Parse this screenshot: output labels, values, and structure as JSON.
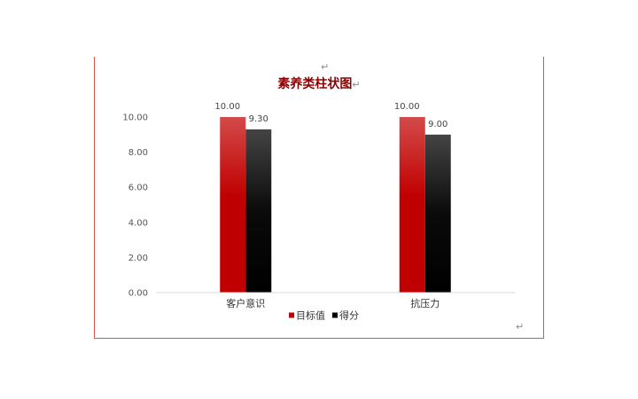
{
  "doc": {
    "para_mark": "↵"
  },
  "chart_data": {
    "type": "bar",
    "title": "素养类柱状图",
    "categories": [
      "客户意识",
      "抗压力"
    ],
    "series": [
      {
        "name": "目标值",
        "values": [
          10.0,
          10.0
        ],
        "color": "#c00000"
      },
      {
        "name": "得分",
        "values": [
          9.3,
          9.0
        ],
        "color": "#000000"
      }
    ],
    "data_labels": [
      [
        "10.00",
        "10.00"
      ],
      [
        "9.30",
        "9.00"
      ]
    ],
    "ylim": [
      0,
      10
    ],
    "yticks": [
      0,
      2,
      4,
      6,
      8,
      10
    ],
    "ytick_labels": [
      "0.00",
      "2.00",
      "4.00",
      "6.00",
      "8.00",
      "10.00"
    ],
    "xlabel": "",
    "ylabel": "",
    "grid": false,
    "legend": "bottom"
  }
}
